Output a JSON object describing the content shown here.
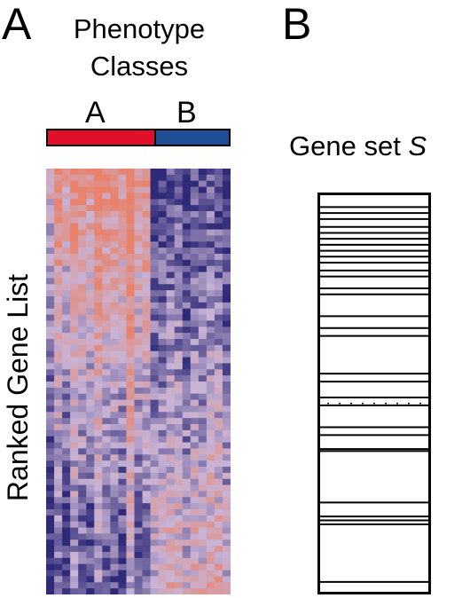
{
  "panel_a": {
    "letter": "A",
    "title_line1": "Phenotype",
    "title_line2": "Classes",
    "class_a": {
      "label": "A",
      "color": "#e0102a"
    },
    "class_b": {
      "label": "B",
      "color": "#1f4e97"
    },
    "side_label": "Ranked Gene List",
    "heatmap": {
      "rows": 70,
      "columns": 23,
      "columns_class_a": 13,
      "color_high": "#e8826a",
      "color_low": "#2e2a78",
      "color_mid": "#c9b4d6"
    }
  },
  "panel_b": {
    "letter": "B",
    "title": "Gene set ",
    "title_italic": "S",
    "gene_set_marks": [
      0.03,
      0.045,
      0.06,
      0.08,
      0.095,
      0.11,
      0.125,
      0.14,
      0.155,
      0.17,
      0.19,
      0.205,
      0.235,
      0.25,
      0.305,
      0.335,
      0.355,
      0.45,
      0.47,
      0.51,
      0.53,
      0.585,
      0.605,
      0.64,
      0.645,
      0.775,
      0.81,
      0.82,
      0.83,
      0.975
    ],
    "dotted_marker": 0.525
  }
}
